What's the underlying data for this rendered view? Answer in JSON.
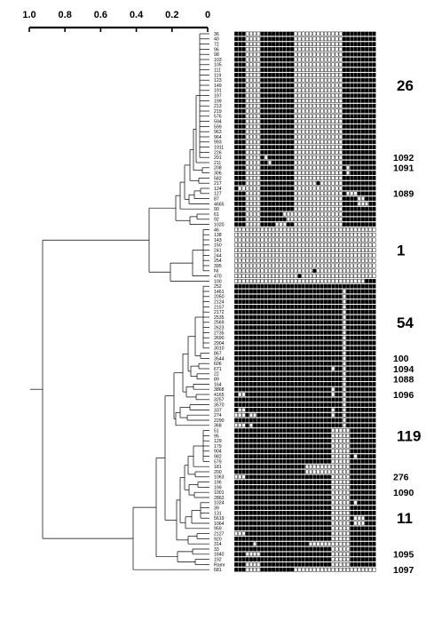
{
  "axis": {
    "ticks": [
      "1.0",
      "0.8",
      "0.6",
      "0.4",
      "0.2",
      "0"
    ]
  },
  "leaves": [
    "36",
    "40",
    "72",
    "96",
    "98",
    "103",
    "105",
    "111",
    "119",
    "123",
    "149",
    "191",
    "197",
    "199",
    "213",
    "219",
    "576",
    "594",
    "599",
    "963",
    "964",
    "993",
    "1911",
    "226",
    "201",
    "211",
    "208",
    "306",
    "582",
    "217",
    "124",
    "127",
    "87",
    "4665",
    "90",
    "61",
    "92",
    "1020",
    "46",
    "138",
    "143",
    "150",
    "241",
    "244",
    "254",
    "395",
    "NI",
    "470",
    "100",
    "252",
    "1461",
    "2050",
    "2124",
    "2157",
    "2172",
    "2535",
    "2569",
    "2623",
    "2735",
    "2690",
    "2904",
    "3010",
    "867",
    "3544",
    "606",
    "671",
    "22",
    "89",
    "164",
    "3868",
    "4165",
    "3257",
    "3570",
    "337",
    "274",
    "2290",
    "368",
    "51",
    "95",
    "129",
    "179",
    "904",
    "982",
    "579",
    "181",
    "200",
    "1063",
    "196",
    "199",
    "1001",
    "2862",
    "1024",
    "39",
    "131",
    "5619",
    "1064",
    "959",
    "2127",
    "920",
    "314",
    "33",
    "1840",
    "192",
    "Ramr",
    "681"
  ],
  "group_labels": [
    {
      "text": "26",
      "row": 10,
      "size": "big"
    },
    {
      "text": "1092",
      "row": 24,
      "size": "small"
    },
    {
      "text": "1091",
      "row": 26,
      "size": "small"
    },
    {
      "text": "1089",
      "row": 31,
      "size": "small"
    },
    {
      "text": "1",
      "row": 42,
      "size": "big"
    },
    {
      "text": "54",
      "row": 56,
      "size": "big"
    },
    {
      "text": "100",
      "row": 63,
      "size": "small"
    },
    {
      "text": "1094",
      "row": 65,
      "size": "small"
    },
    {
      "text": "1088",
      "row": 67,
      "size": "small"
    },
    {
      "text": "1096",
      "row": 70,
      "size": "small"
    },
    {
      "text": "119",
      "row": 78,
      "size": "big"
    },
    {
      "text": "276",
      "row": 86,
      "size": "small"
    },
    {
      "text": "1090",
      "row": 89,
      "size": "small"
    },
    {
      "text": "11",
      "row": 94,
      "size": "big"
    },
    {
      "text": "1095",
      "row": 101,
      "size": "small"
    },
    {
      "text": "1097",
      "row": 104,
      "size": "small"
    }
  ],
  "profiles": [
    "BBBWWWWBBBBBBBBBWWWWWWWWWWWWWBBBBBBBBB",
    "BBBWWWWBBBBBBBBBWWWWWWWWWWWWWBBBBBBBBB",
    "BBBWWWWBBBBBBBBBWWWWWWWWWWWWWBBBBBBBBB",
    "BBBWWWWBBBBBBBBBWWWWWWWWWWWWWBBBBBBBBB",
    "BBBWWWWBBBBBBBBBWWWWWWWWWWWWWBBBBBBBBB",
    "BBBWWWWBBBBBBBBBWWWWWWWWWWWWWBBBBBBBBB",
    "BBBWWWWBBBBBBBBBWWWWWWWWWWWWWBBBBBBBBB",
    "BBBWWWWBBBBBBBBBWWWWWWWWWWWWWBBBBBBBBB",
    "BBBWWWWBBBBBBBBBWWWWWWWWWWWWWBBBBBBBBB",
    "BBBWWWWBBBBBBBBBWWWWWWWWWWWWWBBBBBBBBB",
    "BBBWWWWBBBBBBBBBWWWWWWWWWWWWWBBBBBBBBB",
    "BBBWWWWBBBBBBBBBWWWWWWWWWWWWWBBBBBBBBB",
    "BBBWWWWBBBBBBBBBWWWWWWWWWWWWWBBBBBBBBB",
    "BBBWWWWBBBBBBBBBWWWWWWWWWWWWWBBBBBBBBB",
    "BBBWWWWBBBBBBBBBWWWWWWWWWWWWWBBBBBBBBB",
    "BBBWWWWBBBBBBBBBWWWWWWWWWWWWWBBBBBBBBB",
    "BBBWWWWBBBBBBBBBWWWWWWWWWWWWWBBBBBBBBB",
    "BBBWWWWBBBBBBBBBWWWWWWWWWWWWWBBBBBBBBB",
    "BBBWWWWBBBBBBBBBWWWWWWWWWWWWWBBBBBBBBB",
    "BBBWWWWBBBBBBBBBWWWWWWWWWWWWWBBBBBBBBB",
    "BBBWWWWBBBBBBBBBWWWWWWWWWWWWWBBBBBBBBB",
    "BBBWWWWBBBBBBBBBWWWWWWWWWWWWWBBBBBBBBB",
    "BBBWWWWBBBBBBBBBWWWWWWWWWWWWWBBBBBBBBB",
    "BBBWWWWBBBBBBBBBWWWWWWWWWWWWWBBBBBBBBB",
    "BBBWWWWBWBBBBBBBWWWWWWWWWWWWWBBBBBBBBB",
    "BBBWWWWBBWBBBBBBWWWWWWWWWWWWWBBBBBBBBB",
    "BBBWWWWBBBBBBBBBWWWWWWWWWWWWWBWBBBBBBB",
    "BBBWWWWBBBBBBBBBWWWWWWWWWWWWWBWBBBBBBB",
    "BBBWWWWBBBBBBBBBWWWWWWWWWWWWWBBBBBBBBB",
    "BBBWWWWBBBBBBBBBWWWWWWBWWWWWWBBBBBBBBB",
    "BWWWWWWBBBBBBBBBWWWWWWWWWWWWWBBBBBBBBB",
    "BBBWWWWBBBBBBBBBWWWWWWWWWWWWWBWWWBBBBB",
    "BBBWWWWBBBBBBBBBWWWWWWWWWWWWWBBBBWWBBB",
    "BBBWWWWBBBBBBBBBWWWWWWWWWWWWWBBBBWWWBB",
    "BBBWWWWBBBBBBBBBWWWWWWWWWWWWWBBBBBBBBB",
    "BBBWWWWBBBBBBWWWWWWWWWWWWWWWWBBBBBBBBB",
    "BBBWWWWBBBBBBBWWWWWWWWWWWWWWWBBBBBBBBB",
    "BBBWWWWBBBBWWWBBWWWWWWWWWWWWWBBBBBBBBB",
    "WWWWWWWWWWWWWWWWWWWWWWWWWWWWWWWWWWWWWW",
    "WWWWWWWWWWWWWWWWWWWWWWWWWWWWWWWWWWWWWW",
    "WWWWWWWWWWWWWWWWWWWWWWWWWWWWWWWWWWWWWW",
    "WWWWWWWWWWWWWWWWWWWWWWWWWWWWWWWWWWWWWW",
    "WWWWWWWWWWWWWWWWWWWWWWWWWWWWWWWWWWWWWW",
    "WWWWWWWWWWWWWWWWWWWWWWWWWWWWWWWWWWWWWW",
    "WWWWWWWWWWWWWWWWWWWWWWWWWWWWWWWWWWWWWW",
    "WWWWWWWWWWWWWWWWWWWWWWWWWWWWWWWWWWWWWW",
    "WWWWWWWWWWWWWWWWWWWWWBWWWWWWWWWWWWWWWW",
    "WWWWWWWWWWWWWWWWWBWWWWWWWWWWWWWWWWWWWW",
    "WWWWWWWWWWWWWWWWWWWWWWWWWWWWWWWWWWWBBB",
    "BBBBBBBBBBBBBBBBBBBBBBBBBBBBBBBBBBBBBB",
    "BBBBBBBBBBBBBBBBBBBBBBBBBBBBBWBBBBBBBB",
    "BBBBBBBBBBBBBBBBBBBBBBBBBBBBBWBBBBBBBB",
    "BBBBBBBBBBBBBBBBBBBBBBBBBBBBBWBBBBBBBB",
    "BBBBBBBBBBBBBBBBBBBBBBBBBBBBBWBBBBBBBB",
    "BBBBBBBBBBBBBBBBBBBBBBBBBBBBBWBBBBBBBB",
    "BBBBBBBBBBBBBBBBBBBBBBBBBBBBBWBBBBBBBB",
    "BBBBBBBBBBBBBBBBBBBBBBBBBBBBBWBBBBBBBB",
    "BBBBBBBBBBBBBBBBBBBBBBBBBBBBBWBBBBBBBB",
    "BBBBBBBBBBBBBBBBBBBBBBBBBBBBBWBBBBBBBB",
    "BBBBBBBBBBBBBBBBBBBBBBBBBBBBBWBBBBBBBB",
    "BBBBBBBBBBBBBBBBBBBBBBBBBBBBBWBBBBBBBB",
    "BBBBBBBBBBBBBBBBBBBBBBBBBBBBBWBBBBBBBB",
    "BBBBBBBBBBBBBBBBBBBBBBBBBBBBBWBBBBBBBB",
    "BBBBBBBBBBBBBBBBBBBBBBBBBBBBBWBBBBBBBB",
    "BBBBBBBBBBBBBBBBBBBBBBBBBBBBBWBBBBBBBB",
    "BBBBBBBBBBBBBBBBBBBBBBBBBBWBBWBBBBBBBB",
    "BBBBBBBBBBBBBBBBBBBBBBBBBBBBBWBBBBBBBB",
    "BBBBBBBBBBBBBBBBBBBBBBBBBBBBBWBBBBBBBB",
    "BBBBBBBBBBBBBBBBBBBBBBBBBBBBBWBBBBBBBB",
    "BBBBBBBBBBBBBBBBBBBBBBBBBBWBBWBBBBBBBB",
    "BWWBBBBBBBBBBBBBBBBBBBBBBBWBBWBBBBBBBB",
    "BBBBBBBBBBBBBBBBBBBBBBBBBBBBBWBBBBBBBB",
    "BBBBBBBBBBBBBBBBBBBBBBBBBBBBBWBBBBBBBB",
    "BWWBBBBBBBBBBBBBBBBBBBBBBBWBBWBBBBBBBB",
    "WWWBWWBBBBBBBBBBBBBBBBBBBBWBBWBBBBBBBB",
    "BBBBBBBBBBBBBBBBBBBBBBBBBBBBBWBBBBBBBB",
    "WWWBWBBBBBBBBBBBBBBBBBBBBBBBBWBBBBBBBB",
    "BBBBBBBBBBBBBBBBBBBBBBBBBBWWWWWBBBBBBB",
    "BBBBBBBBBBBBBBBBBBBBBBBBBBWWWWWBBBBBBB",
    "BBBBBBBBBBBBBBBBBBBBBBBBBBWWWWWBBBBBBB",
    "BBBBBBBBBBBBBBBBBBBBBBBBBBWWWWWBBBBBBB",
    "BBBBBBBBBBBBBBBBBBBBBBBBBBWWWWWBBBBBBB",
    "BBBBBBBBBBBBBBBBBBBBBBBBBBWWWWWBWBBBBB",
    "BBBBBBBBBBBBBBBBBBBBBBBBBBWWWWWBBBBBBB",
    "BBBBBBBBBBBBBBBBBBBWWWWWWWWWWWWBBBBBBB",
    "BBBBBBBBBBBBBBBBBBBWWWWWWWWWWWWBBBBBBB",
    "WWWBBBBBBBBBBBBBBBBBBBBBBBWWWWWBBBBBBB",
    "BBBBBBBBBBBBBBBBBBBBBBBBBBWWWWWBBBBBBB",
    "BBBBBBBBBBBBBBBBBBBBBBBBBBWWWWWBBBBBBB",
    "BBBBBBBBBBBBBBBBBBBBBBBBBBWWWWWBBBBBBB",
    "BBBBBBBBBBBBBBBBBBBBBBBBBBWWWWWBBBBBBB",
    "BBBBBBBBBBBBBBBBBBBBBBBBBBWWWWWBWBBBBB",
    "BBBBBBBBBBBBBBBBBBBBBBBBBBWWWWWBBBBBBB",
    "BBBBBBBBBBBBBBBBBBBBBBBBBBWWWWWBBBBBBB",
    "BBBBBBBBBBBBBBBBBBBBBBBBBBWWWWWBWWWBBB",
    "BBBBBBBBBBBBBBBBBBBBBBBBBBWWWWWBWWWBBB",
    "BBBBBBBBBBBBBBBBBBBBBBBBBBWWWWWBBBBBBB",
    "WWWBBBBBBBBBBBBBBBBBBBBBBBWWWWWBBBBBBB",
    "BBBBBBBBBBBBBBBBBBBBBBBBBBWWWWWBBBBBBB",
    "BBBBBWBBBBBBBBBBBBBBWWWWWWWWWWWBBBBBBB",
    "BBBBBBBBBBBBBBBBBBBBBBBBBBWWWWWBBBBBBB",
    "BBBWWWWBBBBBBBBBBBBBBBBBBBWWWWWBBBBBBB",
    "BBBBBBBBBBBBBBBBBBBBBBBBBBWWWWWBBBBBBB",
    "BBBWWWWBBBBBBBBBBBBBBBBBBBWWWWWBBBBBBB",
    "BBBWWWWBBBBBBBBBWWWWWWWWWWWWWWWWWWWWWW"
  ],
  "colors": {
    "ink": "#000000",
    "paper": "#ffffff"
  }
}
